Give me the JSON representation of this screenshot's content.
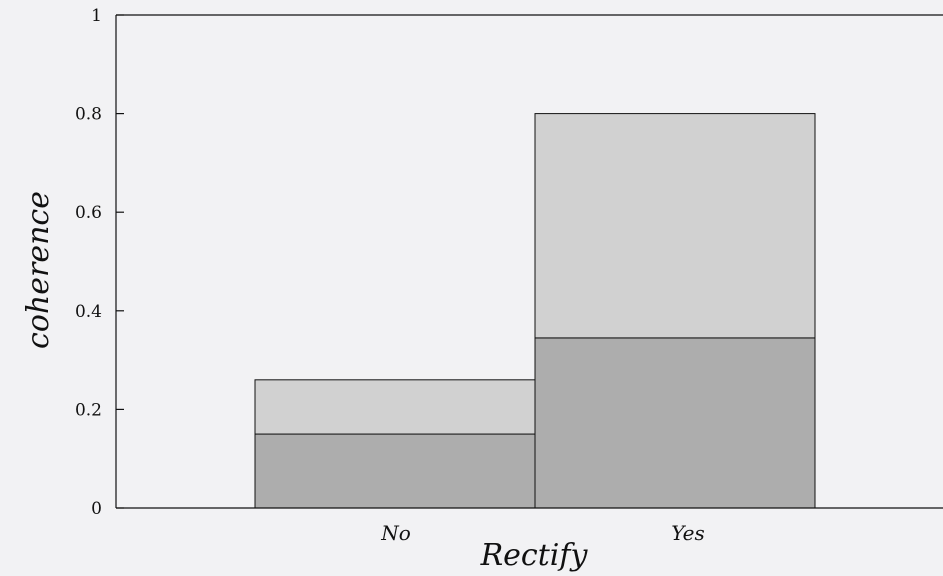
{
  "chart_data": {
    "type": "bar",
    "stacked": true,
    "title": "",
    "xlabel": "Rectify",
    "ylabel": "coherence",
    "categories": [
      "No",
      "Yes"
    ],
    "series": [
      {
        "values": [
          0.15,
          0.345
        ],
        "color": "#adadad"
      },
      {
        "values": [
          0.11,
          0.455
        ],
        "color": "#d1d1d1"
      }
    ],
    "totals": [
      0.26,
      0.8
    ],
    "ylim": [
      0,
      1
    ],
    "yticks": [
      "0",
      "0.2",
      "0.4",
      "0.6",
      "0.8",
      "1"
    ],
    "grid": false,
    "legend": "none"
  }
}
